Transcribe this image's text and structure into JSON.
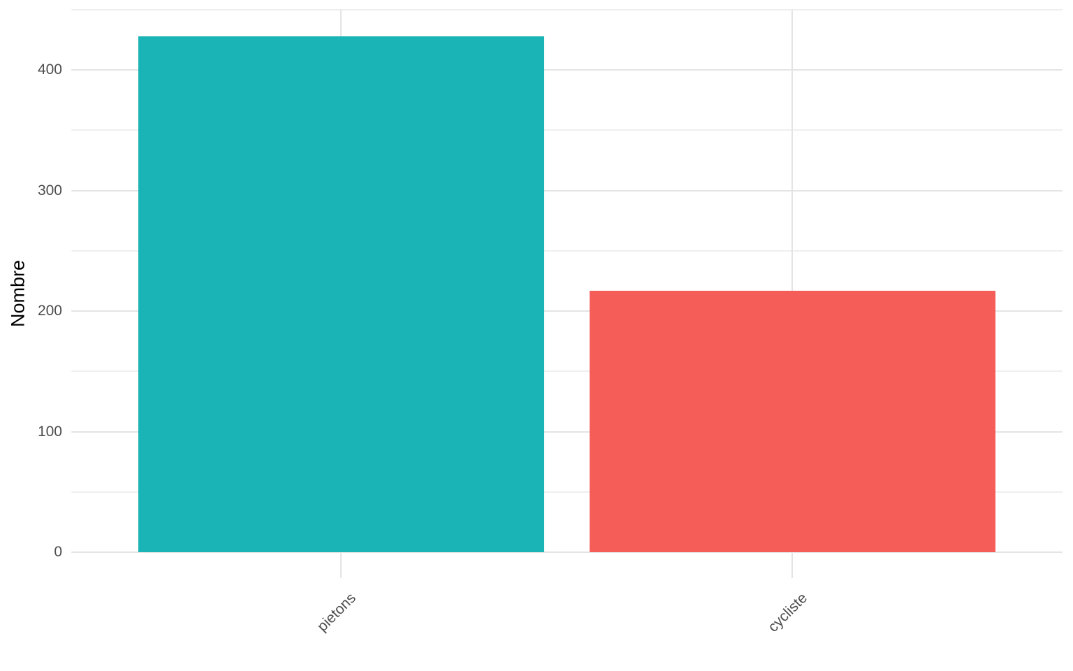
{
  "chart_data": {
    "type": "bar",
    "title": "",
    "xlabel": "",
    "ylabel": "Nombre",
    "categories": [
      "pietons",
      "cycliste"
    ],
    "values": [
      428,
      217
    ],
    "bar_colors": [
      "#1AB3B6",
      "#F45D58"
    ],
    "ylim": [
      0,
      450
    ],
    "y_major_ticks": [
      0,
      100,
      200,
      300,
      400
    ],
    "y_minor_ticks": [
      50,
      150,
      250,
      350,
      450
    ],
    "grid": "horizontal major+minor, vertical at category centers",
    "legend_position": "none",
    "x_tick_rotation_deg": 45,
    "style": "ggplot theme_minimal"
  },
  "colors": {
    "background": "#FFFFFF",
    "grid_major": "#E4E4E4",
    "grid_minor": "#EFEFEF",
    "tick_label": "#4D4D4D",
    "axis_title": "#000000"
  }
}
